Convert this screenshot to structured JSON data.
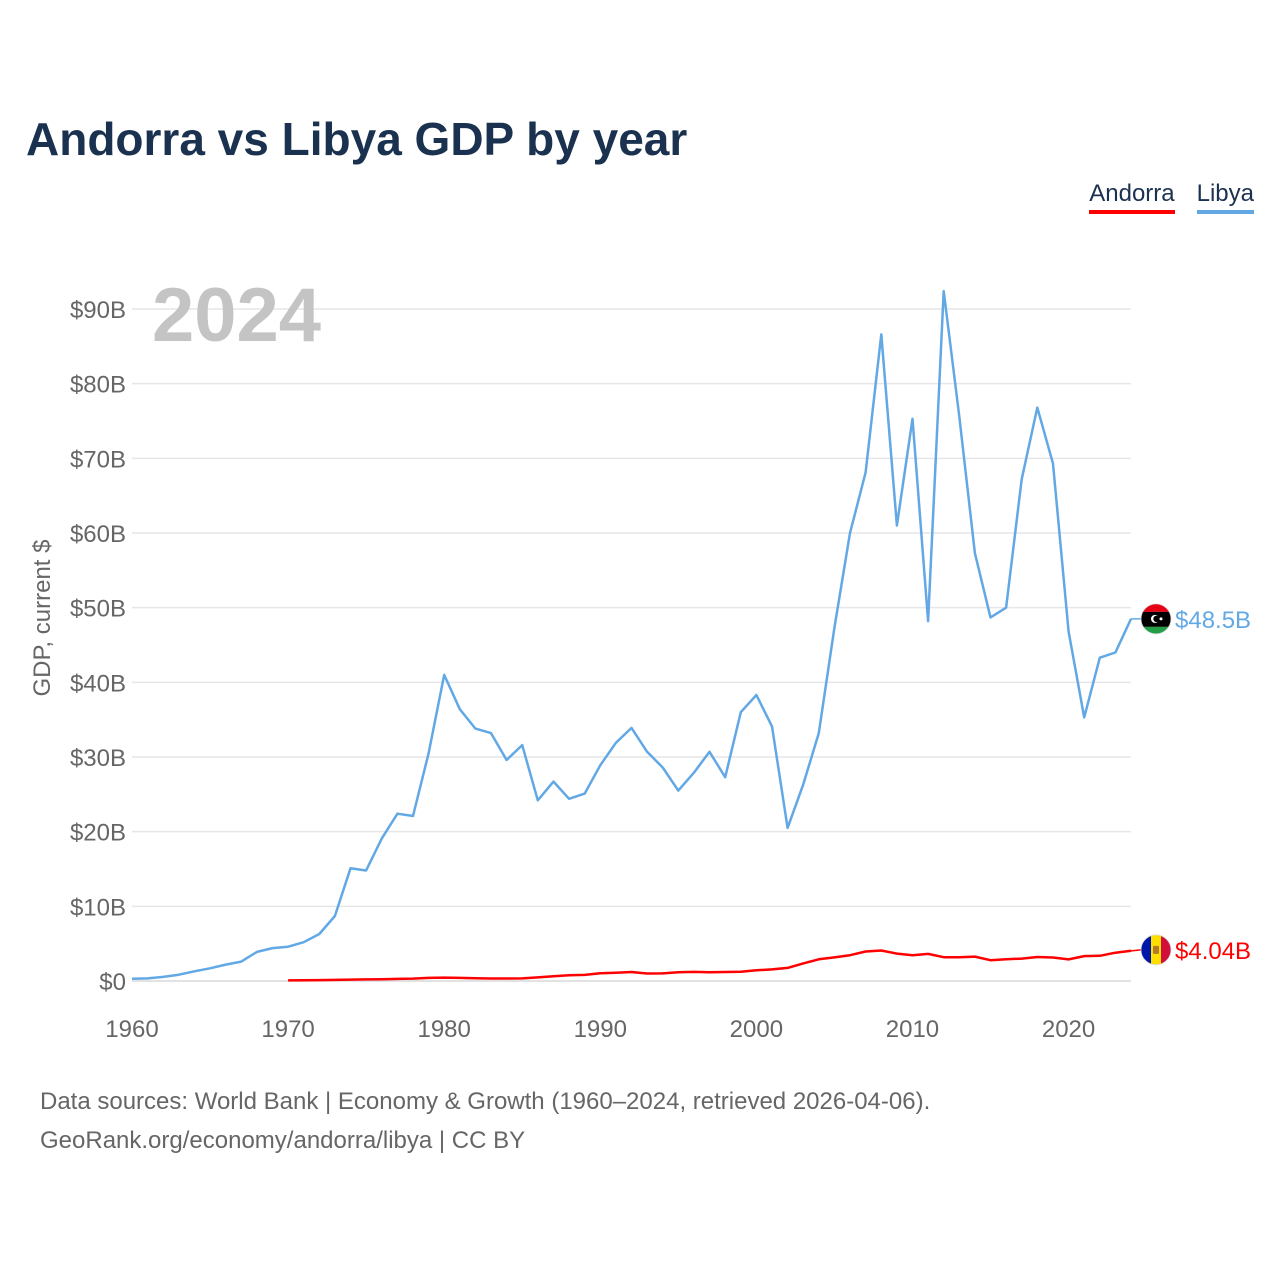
{
  "chart_data": {
    "type": "line",
    "title": "Andorra vs Libya GDP by year",
    "ylabel": "GDP, current $",
    "xlabel": "",
    "year_label": "2024",
    "xlim": [
      1960,
      2024
    ],
    "ylim": [
      0,
      90
    ],
    "x_ticks": [
      1960,
      1970,
      1980,
      1990,
      2000,
      2010,
      2020
    ],
    "y_ticks": [
      {
        "value": 0,
        "label": "$0"
      },
      {
        "value": 10,
        "label": "$10B"
      },
      {
        "value": 20,
        "label": "$20B"
      },
      {
        "value": 30,
        "label": "$30B"
      },
      {
        "value": 40,
        "label": "$40B"
      },
      {
        "value": 50,
        "label": "$50B"
      },
      {
        "value": 60,
        "label": "$60B"
      },
      {
        "value": 70,
        "label": "$70B"
      },
      {
        "value": 80,
        "label": "$80B"
      },
      {
        "value": 90,
        "label": "$90B"
      }
    ],
    "series": [
      {
        "name": "Andorra",
        "color": "#ff0000",
        "end_label": "$4.04B",
        "flag_colors": [
          "#0018a8",
          "#fedf00",
          "#d0103a"
        ],
        "x": [
          1970,
          1971,
          1972,
          1973,
          1974,
          1975,
          1976,
          1977,
          1978,
          1979,
          1980,
          1981,
          1982,
          1983,
          1984,
          1985,
          1986,
          1987,
          1988,
          1989,
          1990,
          1991,
          1992,
          1993,
          1994,
          1995,
          1996,
          1997,
          1998,
          1999,
          2000,
          2001,
          2002,
          2003,
          2004,
          2005,
          2006,
          2007,
          2008,
          2009,
          2010,
          2011,
          2012,
          2013,
          2014,
          2015,
          2016,
          2017,
          2018,
          2019,
          2020,
          2021,
          2022,
          2023,
          2024
        ],
        "values": [
          0.08,
          0.1,
          0.12,
          0.15,
          0.19,
          0.22,
          0.24,
          0.28,
          0.32,
          0.41,
          0.45,
          0.42,
          0.38,
          0.34,
          0.33,
          0.35,
          0.48,
          0.64,
          0.76,
          0.82,
          1.03,
          1.11,
          1.21,
          1.01,
          1.02,
          1.18,
          1.22,
          1.18,
          1.21,
          1.24,
          1.43,
          1.55,
          1.76,
          2.36,
          2.9,
          3.16,
          3.46,
          3.95,
          4.09,
          3.67,
          3.45,
          3.63,
          3.19,
          3.19,
          3.27,
          2.79,
          2.9,
          3.0,
          3.22,
          3.15,
          2.89,
          3.33,
          3.38,
          3.79,
          4.04
        ]
      },
      {
        "name": "Libya",
        "color": "#62a8e5",
        "end_label": "$48.5B",
        "flag_colors": [
          "#e70013",
          "#000000",
          "#239e46"
        ],
        "x": [
          1960,
          1961,
          1962,
          1963,
          1964,
          1965,
          1966,
          1967,
          1968,
          1969,
          1970,
          1971,
          1972,
          1973,
          1974,
          1975,
          1976,
          1977,
          1978,
          1979,
          1980,
          1981,
          1982,
          1983,
          1984,
          1985,
          1986,
          1987,
          1988,
          1989,
          1990,
          1991,
          1992,
          1993,
          1994,
          1995,
          1996,
          1997,
          1998,
          1999,
          2000,
          2001,
          2002,
          2003,
          2004,
          2005,
          2006,
          2007,
          2008,
          2009,
          2010,
          2011,
          2012,
          2013,
          2014,
          2015,
          2016,
          2017,
          2018,
          2019,
          2020,
          2021,
          2022,
          2023,
          2024
        ],
        "values": [
          0.3,
          0.35,
          0.55,
          0.85,
          1.3,
          1.7,
          2.2,
          2.6,
          3.9,
          4.4,
          4.6,
          5.2,
          6.3,
          8.7,
          15.1,
          14.8,
          19.1,
          22.4,
          22.1,
          30.5,
          41.0,
          36.4,
          33.8,
          33.2,
          29.6,
          31.6,
          24.2,
          26.7,
          24.4,
          25.1,
          28.9,
          31.9,
          33.9,
          30.7,
          28.6,
          25.5,
          27.9,
          30.7,
          27.3,
          36.0,
          38.3,
          34.1,
          20.5,
          26.3,
          33.2,
          47.3,
          60.0,
          68.1,
          86.6,
          61.0,
          75.3,
          48.2,
          92.4,
          75.6,
          57.3,
          48.7,
          50.0,
          67.2,
          76.8,
          69.3,
          46.8,
          35.3,
          43.3,
          44.0,
          48.5
        ]
      }
    ]
  },
  "source": {
    "line1": "Data sources: World Bank | Economy & Growth (1960–2024, retrieved 2026-04-06).",
    "line2": "GeoRank.org/economy/andorra/libya | CC BY"
  }
}
